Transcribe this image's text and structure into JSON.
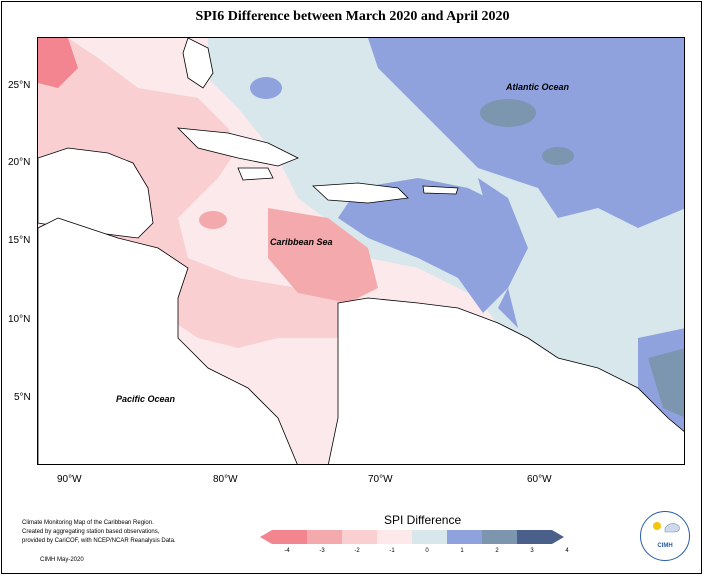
{
  "title": "SPI6 Difference between March 2020 and April 2020",
  "lat_labels": [
    "25°N",
    "20°N",
    "15°N",
    "10°N",
    "5°N"
  ],
  "lon_labels": [
    "90°W",
    "80°W",
    "70°W",
    "60°W"
  ],
  "ocean_labels": {
    "atlantic": "Atlantic Ocean",
    "caribbean": "Caribbean Sea",
    "pacific": "Pacific Ocean"
  },
  "legend": {
    "title": "SPI Difference",
    "ticks": [
      "-4",
      "-3",
      "-2",
      "-1",
      "0",
      "1",
      "2",
      "3",
      "4"
    ],
    "colors": [
      "#f2858f",
      "#f4aaad",
      "#f9cfd1",
      "#fde8ea",
      "#d7e7ec",
      "#8fa2dd",
      "#7b96ae",
      "#4a5f8a"
    ]
  },
  "credit": {
    "line1": "Climate Monitoring Map of the Caribbean Region.",
    "line2": "Created by aggregating station based observations,",
    "line3": "provided by CariCOF, with NCEP/NCAR Reanalysis Data.",
    "date": "CIMH May-2020"
  },
  "logo": {
    "name": "CIMH"
  }
}
